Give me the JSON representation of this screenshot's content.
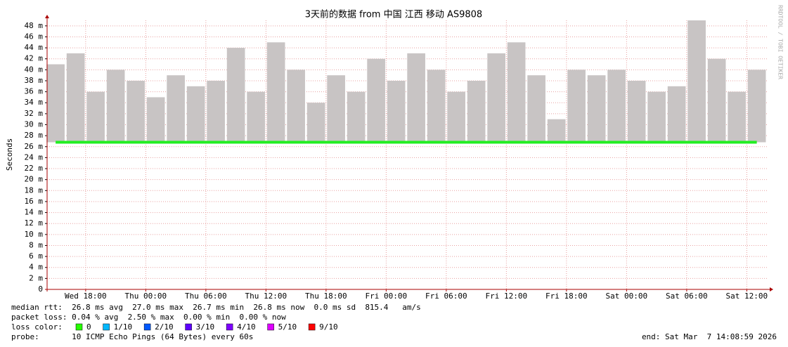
{
  "chart_data": {
    "type": "smokeping",
    "title": "3天前的数据 from 中国 江西 移动 AS9808",
    "y_label": "Seconds",
    "side_label": "RRDTOOL / TOBI OETIKER",
    "xlim": [
      "2026-03-04T14:08:59",
      "2026-03-07T14:08:59"
    ],
    "xticks": [
      {
        "value": "2026-03-04T18:00",
        "label": "Wed 18:00"
      },
      {
        "value": "2026-03-05T00:00",
        "label": "Thu 00:00"
      },
      {
        "value": "2026-03-05T06:00",
        "label": "Thu 06:00"
      },
      {
        "value": "2026-03-05T12:00",
        "label": "Thu 12:00"
      },
      {
        "value": "2026-03-05T18:00",
        "label": "Thu 18:00"
      },
      {
        "value": "2026-03-06T00:00",
        "label": "Fri 00:00"
      },
      {
        "value": "2026-03-06T06:00",
        "label": "Fri 06:00"
      },
      {
        "value": "2026-03-06T12:00",
        "label": "Fri 12:00"
      },
      {
        "value": "2026-03-06T18:00",
        "label": "Fri 18:00"
      },
      {
        "value": "2026-03-07T00:00",
        "label": "Sat 00:00"
      },
      {
        "value": "2026-03-07T06:00",
        "label": "Sat 06:00"
      },
      {
        "value": "2026-03-07T12:00",
        "label": "Sat 12:00"
      }
    ],
    "ylim": [
      0,
      0.049
    ],
    "yticks": [
      0,
      {
        "value": 0.002,
        "label": "2 m"
      },
      {
        "value": 0.004,
        "label": "4 m"
      },
      {
        "value": 0.006,
        "label": "6 m"
      },
      {
        "value": 0.008,
        "label": "8 m"
      },
      {
        "value": 0.01,
        "label": "10 m"
      },
      {
        "value": 0.012,
        "label": "12 m"
      },
      {
        "value": 0.014,
        "label": "14 m"
      },
      {
        "value": 0.016,
        "label": "16 m"
      },
      {
        "value": 0.018,
        "label": "18 m"
      },
      {
        "value": 0.02,
        "label": "20 m"
      },
      {
        "value": 0.022,
        "label": "22 m"
      },
      {
        "value": 0.024,
        "label": "24 m"
      },
      {
        "value": 0.026,
        "label": "26 m"
      },
      {
        "value": 0.028,
        "label": "28 m"
      },
      {
        "value": 0.03,
        "label": "30 m"
      },
      {
        "value": 0.032,
        "label": "32 m"
      },
      {
        "value": 0.034,
        "label": "34 m"
      },
      {
        "value": 0.036,
        "label": "36 m"
      },
      {
        "value": 0.038,
        "label": "38 m"
      },
      {
        "value": 0.04,
        "label": "40 m"
      },
      {
        "value": 0.042,
        "label": "42 m"
      },
      {
        "value": 0.044,
        "label": "44 m"
      },
      {
        "value": 0.046,
        "label": "46 m"
      },
      {
        "value": 0.048,
        "label": "48 m"
      }
    ],
    "grid": true,
    "x": [
      "2026-03-04T15:00",
      "2026-03-04T17:00",
      "2026-03-04T19:00",
      "2026-03-04T21:00",
      "2026-03-04T23:00",
      "2026-03-05T01:00",
      "2026-03-05T03:00",
      "2026-03-05T05:00",
      "2026-03-05T07:00",
      "2026-03-05T09:00",
      "2026-03-05T11:00",
      "2026-03-05T13:00",
      "2026-03-05T15:00",
      "2026-03-05T17:00",
      "2026-03-05T19:00",
      "2026-03-05T21:00",
      "2026-03-05T23:00",
      "2026-03-06T01:00",
      "2026-03-06T03:00",
      "2026-03-06T05:00",
      "2026-03-06T07:00",
      "2026-03-06T09:00",
      "2026-03-06T11:00",
      "2026-03-06T13:00",
      "2026-03-06T15:00",
      "2026-03-06T17:00",
      "2026-03-06T19:00",
      "2026-03-06T21:00",
      "2026-03-06T23:00",
      "2026-03-07T01:00",
      "2026-03-07T03:00",
      "2026-03-07T05:00",
      "2026-03-07T07:00",
      "2026-03-07T09:00",
      "2026-03-07T11:00",
      "2026-03-07T13:00"
    ],
    "smoke_color": "#c8c4c4",
    "smoke_max": [
      0.041,
      0.043,
      0.036,
      0.04,
      0.038,
      0.035,
      0.039,
      0.037,
      0.038,
      0.044,
      0.036,
      0.045,
      0.04,
      0.034,
      0.039,
      0.036,
      0.042,
      0.038,
      0.043,
      0.04,
      0.036,
      0.038,
      0.043,
      0.045,
      0.039,
      0.031,
      0.04,
      0.039,
      0.04,
      0.038,
      0.036,
      0.037,
      0.049,
      0.042,
      0.036,
      0.04
    ],
    "median_color": "#22ee22",
    "median": [
      0.0268,
      0.0268,
      0.0268,
      0.0268,
      0.0268,
      0.0268,
      0.0268,
      0.0268,
      0.0268,
      0.0268,
      0.0268,
      0.0268,
      0.0268,
      0.0268,
      0.0268,
      0.0268,
      0.0268,
      0.0268,
      0.0268,
      0.0268,
      0.0268,
      0.0268,
      0.0268,
      0.0268,
      0.0268,
      0.0268,
      0.0268,
      0.0268,
      0.0268,
      0.0268,
      0.0268,
      0.0268,
      0.0268,
      0.0268,
      0.0268,
      0.0268
    ],
    "stats": [
      "median rtt:  26.8 ms avg  27.0 ms max  26.7 ms min  26.8 ms now  0.0 ms sd  815.4   am/s",
      "packet loss: 0.04 % avg  2.50 % max  0.00 % min  0.00 % now"
    ],
    "loss_title": "loss color:",
    "loss_colors": [
      {
        "label": "0",
        "color": "#26ff00"
      },
      {
        "label": "1/10",
        "color": "#00b8ff"
      },
      {
        "label": "2/10",
        "color": "#0059ff"
      },
      {
        "label": "3/10",
        "color": "#5e00ff"
      },
      {
        "label": "4/10",
        "color": "#7e00ff"
      },
      {
        "label": "5/10",
        "color": "#dd00ff"
      },
      {
        "label": "9/10",
        "color": "#ff0000"
      }
    ],
    "probe": "probe:       10 ICMP Echo Pings (64 Bytes) every 60s",
    "end": "end: Sat Mar  7 14:08:59 2026"
  }
}
